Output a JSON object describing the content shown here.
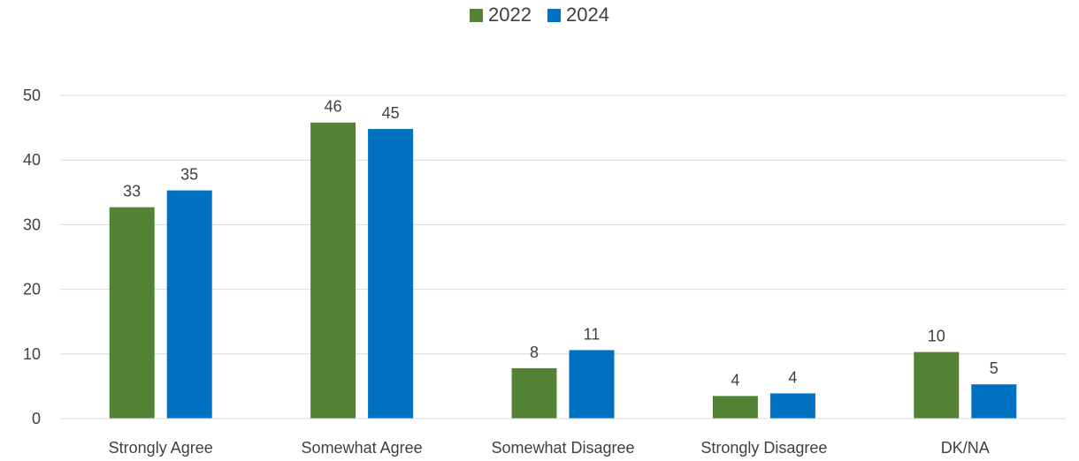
{
  "chart_data": {
    "type": "bar",
    "categories": [
      "Strongly Agree",
      "Somewhat Agree",
      "Somewhat Disagree",
      "Strongly Disagree",
      "DK/NA"
    ],
    "series": [
      {
        "name": "2022",
        "color": "#548235",
        "values": [
          32.7,
          45.8,
          7.8,
          3.5,
          10.3
        ],
        "labels": [
          "33",
          "46",
          "8",
          "4",
          "10"
        ]
      },
      {
        "name": "2024",
        "color": "#0070C0",
        "values": [
          35.3,
          44.8,
          10.6,
          3.9,
          5.3
        ],
        "labels": [
          "35",
          "45",
          "11",
          "4",
          "5"
        ]
      }
    ],
    "ylim": [
      0,
      50
    ],
    "yticks": [
      0,
      10,
      20,
      30,
      40,
      50
    ],
    "grid": true,
    "legend_position": "top-center",
    "xlabel": "",
    "ylabel": "",
    "title": ""
  }
}
